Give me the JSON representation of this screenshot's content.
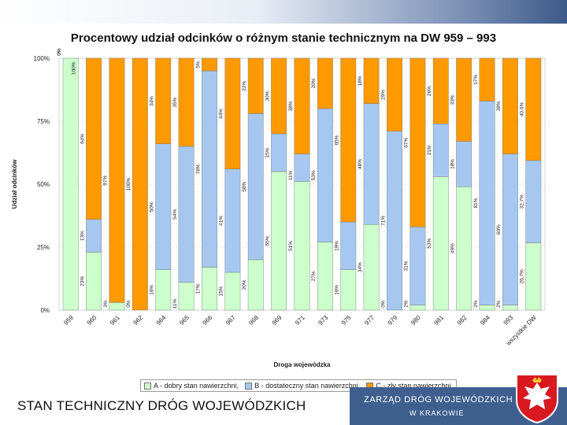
{
  "title": "Procentowy udział odcinków o różnym stanie technicznym na DW 959 – 993",
  "footer_text": "STAN TECHNICZNY DRÓG WOJEWÓDZKICH",
  "brand": {
    "line1": "ZARZĄD DRÓG WOJEWÓDZKICH",
    "line2": "W KRAKOWIE"
  },
  "chart_data": {
    "type": "bar",
    "stacked": true,
    "title": "Procentowy udział odcinków o różnym stanie technicznym na DW 959 – 993",
    "xlabel": "Droga wojewódzka",
    "ylabel": "Udział odcinków",
    "ylim": [
      0,
      100
    ],
    "yticks": [
      "0%",
      "25%",
      "50%",
      "75%",
      "100%"
    ],
    "categories": [
      "959",
      "960",
      "961",
      "962",
      "964",
      "965",
      "966",
      "967",
      "968",
      "969",
      "971",
      "973",
      "975",
      "977",
      "979",
      "980",
      "981",
      "982",
      "984",
      "993",
      "wszystkie DW"
    ],
    "series": [
      {
        "name": "A - dobry stan nawierzchni,",
        "color": "#ccffcc",
        "values": [
          100,
          23,
          3,
          0,
          16,
          11,
          17,
          15,
          20,
          55,
          51,
          27,
          16,
          34,
          0,
          2,
          53,
          49,
          2,
          2,
          26.7
        ],
        "labels": [
          "",
          "23%",
          "3%",
          "0%",
          "16%",
          "11%",
          "17%",
          "15%",
          "20%",
          "55%",
          "51%",
          "27%",
          "16%",
          "34%",
          "0%",
          "2%",
          "53%",
          "49%",
          "2%",
          "2%",
          "26,7%"
        ]
      },
      {
        "name": "B - dostateczny stan nawierzchni,",
        "color": "#a6c8f0",
        "values": [
          0,
          13,
          0,
          0,
          50,
          54,
          78,
          41,
          58,
          15,
          11,
          53,
          19,
          48,
          71,
          31,
          21,
          18,
          81,
          60,
          32.7
        ],
        "labels": [
          "0%",
          "13%",
          "",
          "",
          "50%",
          "54%",
          "78%",
          "41%",
          "58%",
          "15%",
          "11%",
          "53%",
          "19%",
          "48%",
          "71%",
          "31%",
          "21%",
          "18%",
          "81%",
          "60%",
          "32,7%"
        ]
      },
      {
        "name": "C - zły stan nawierzchni,",
        "color": "#ff9900",
        "values": [
          0,
          64,
          97,
          100,
          34,
          35,
          5,
          44,
          22,
          30,
          38,
          20,
          65,
          18,
          29,
          67,
          26,
          33,
          17,
          38,
          40.6
        ],
        "labels": [
          "0%",
          "64%",
          "97%",
          "100%",
          "34%",
          "35%",
          "5%",
          "44%",
          "22%",
          "30%",
          "38%",
          "20%",
          "65%",
          "18%",
          "29%",
          "67%",
          "26%",
          "33%",
          "17%",
          "38%",
          "40,6%"
        ]
      }
    ],
    "leftover_labels": [
      "100%"
    ]
  }
}
